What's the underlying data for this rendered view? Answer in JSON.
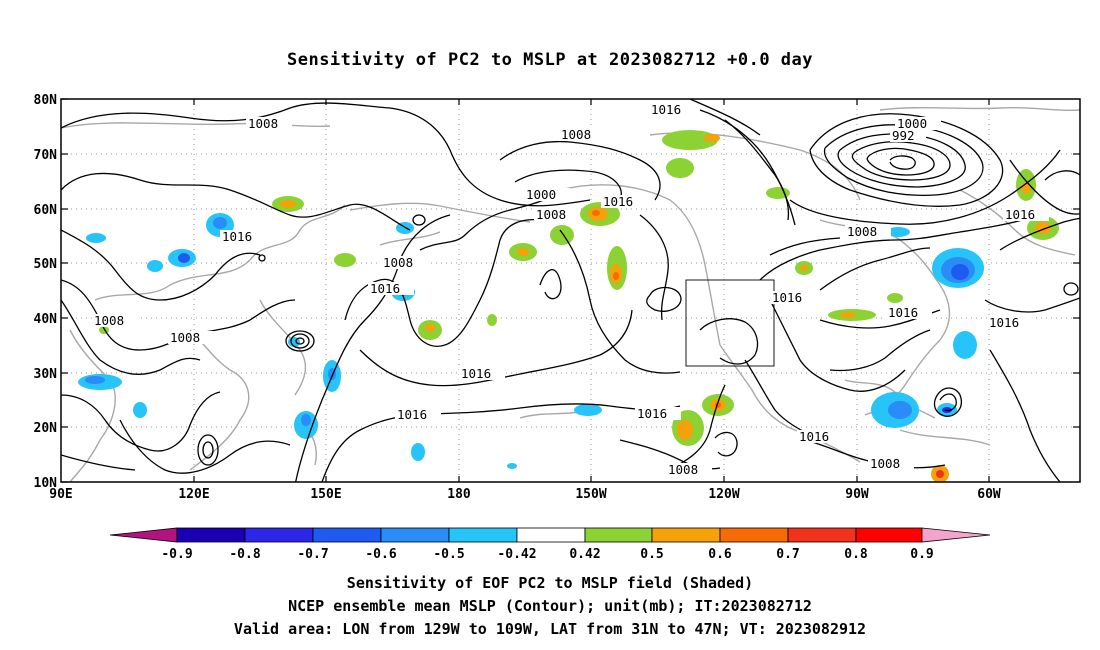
{
  "title": "Sensitivity of PC2 to MSLP at 2023082712 +0.0 day",
  "axes": {
    "lat_labels": [
      "80N",
      "70N",
      "60N",
      "50N",
      "40N",
      "30N",
      "20N",
      "10N"
    ],
    "lon_labels": [
      "90E",
      "120E",
      "150E",
      "180",
      "150W",
      "120W",
      "90W",
      "60W"
    ]
  },
  "contour_labels": [
    {
      "text": "1008"
    },
    {
      "text": "1016"
    },
    {
      "text": "1008"
    },
    {
      "text": "1000"
    },
    {
      "text": "1008"
    },
    {
      "text": "1016"
    },
    {
      "text": "1016"
    },
    {
      "text": "1008"
    },
    {
      "text": "1016"
    },
    {
      "text": "1008"
    },
    {
      "text": "1008"
    },
    {
      "text": "1016"
    },
    {
      "text": "1016"
    },
    {
      "text": "1016"
    },
    {
      "text": "1016"
    },
    {
      "text": "1008"
    },
    {
      "text": "1016"
    },
    {
      "text": "1000"
    },
    {
      "text": "992"
    },
    {
      "text": "1008"
    },
    {
      "text": "1016"
    },
    {
      "text": "1016"
    },
    {
      "text": "1016"
    },
    {
      "text": "1016"
    },
    {
      "text": "1008"
    }
  ],
  "colorbar": {
    "labels": [
      "-0.9",
      "-0.8",
      "-0.7",
      "-0.6",
      "-0.5",
      "-0.42",
      "0.42",
      "0.5",
      "0.6",
      "0.7",
      "0.8",
      "0.9"
    ],
    "colors": [
      "#1a00b4",
      "#2c26e8",
      "#1f5bf0",
      "#2a8cf6",
      "#26c4f8",
      "#ffffff",
      "#8cd234",
      "#f5a10a",
      "#f56b05",
      "#f0331a",
      "#ff0000"
    ],
    "low_extend_color": "#b4127e",
    "high_extend_color": "#f5a3c8"
  },
  "captions": [
    "Sensitivity of EOF PC2 to MSLP field (Shaded)",
    "NCEP ensemble mean MSLP (Contour); unit(mb); IT:2023082712",
    "Valid area: LON from 129W to 109W, LAT from 31N to 47N; VT: 2023082912"
  ]
}
